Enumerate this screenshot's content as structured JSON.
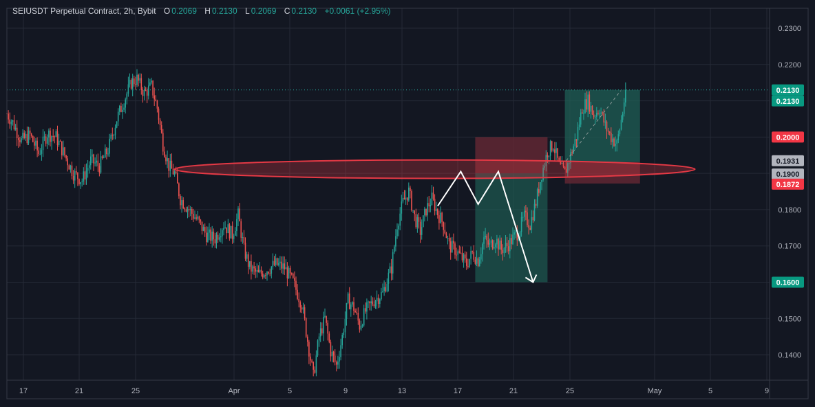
{
  "header": {
    "symbol": "SEIUSDT Perpetual Contract, 2h, Bybit",
    "o_label": "O",
    "o_value": "0.2069",
    "h_label": "H",
    "h_value": "0.2130",
    "l_label": "L",
    "l_value": "0.2069",
    "c_label": "C",
    "c_value": "0.2130",
    "change": "+0.0061 (+2.95%)"
  },
  "colors": {
    "background": "#131722",
    "grid": "#242a36",
    "up": "#26a69a",
    "down": "#ef5350",
    "ellipse": "#e53945",
    "target_zone": "#1f5f56",
    "stop_zone": "#6b2a35",
    "arrow": "#ffffff"
  },
  "chart_data": {
    "type": "candlestick",
    "title": "",
    "xlabel": "",
    "ylabel": "",
    "ylim": [
      0.133,
      0.2355
    ],
    "x_ticks": [
      "17",
      "21",
      "25",
      "Apr",
      "5",
      "9",
      "13",
      "17",
      "21",
      "25",
      "May",
      "5",
      "9"
    ],
    "y_ticks": [
      "0.2300",
      "0.2200",
      "0.2100",
      "0.2000",
      "0.1900",
      "0.1800",
      "0.1700",
      "0.1600",
      "0.1500",
      "0.1400"
    ],
    "price_path": [
      [
        0,
        0.2065
      ],
      [
        4,
        0.204
      ],
      [
        10,
        0.199
      ],
      [
        16,
        0.2005
      ],
      [
        22,
        0.1955
      ],
      [
        28,
        0.201
      ],
      [
        34,
        0.2
      ],
      [
        40,
        0.195
      ],
      [
        46,
        0.19
      ],
      [
        52,
        0.188
      ],
      [
        58,
        0.1935
      ],
      [
        64,
        0.192
      ],
      [
        70,
        0.1965
      ],
      [
        76,
        0.205
      ],
      [
        80,
        0.209
      ],
      [
        86,
        0.215
      ],
      [
        90,
        0.216
      ],
      [
        95,
        0.212
      ],
      [
        100,
        0.214
      ],
      [
        104,
        0.208
      ],
      [
        108,
        0.198
      ],
      [
        112,
        0.192
      ],
      [
        116,
        0.19
      ],
      [
        120,
        0.183
      ],
      [
        126,
        0.18
      ],
      [
        132,
        0.177
      ],
      [
        138,
        0.173
      ],
      [
        144,
        0.172
      ],
      [
        150,
        0.176
      ],
      [
        156,
        0.173
      ],
      [
        160,
        0.1785
      ],
      [
        164,
        0.169
      ],
      [
        168,
        0.164
      ],
      [
        174,
        0.162
      ],
      [
        180,
        0.1635
      ],
      [
        186,
        0.165
      ],
      [
        192,
        0.164
      ],
      [
        198,
        0.16
      ],
      [
        204,
        0.154
      ],
      [
        208,
        0.144
      ],
      [
        212,
        0.134
      ],
      [
        216,
        0.145
      ],
      [
        220,
        0.15
      ],
      [
        224,
        0.141
      ],
      [
        228,
        0.137
      ],
      [
        232,
        0.145
      ],
      [
        236,
        0.155
      ],
      [
        240,
        0.153
      ],
      [
        244,
        0.148
      ],
      [
        248,
        0.152
      ],
      [
        254,
        0.155
      ],
      [
        260,
        0.157
      ],
      [
        266,
        0.164
      ],
      [
        270,
        0.176
      ],
      [
        274,
        0.182
      ],
      [
        278,
        0.185
      ],
      [
        282,
        0.178
      ],
      [
        286,
        0.174
      ],
      [
        290,
        0.18
      ],
      [
        294,
        0.183
      ],
      [
        298,
        0.179
      ],
      [
        302,
        0.176
      ],
      [
        306,
        0.17
      ],
      [
        310,
        0.169
      ],
      [
        314,
        0.167
      ],
      [
        318,
        0.165
      ],
      [
        322,
        0.168
      ],
      [
        326,
        0.166
      ],
      [
        330,
        0.172
      ],
      [
        334,
        0.17
      ],
      [
        338,
        0.172
      ],
      [
        342,
        0.169
      ],
      [
        346,
        0.17
      ],
      [
        350,
        0.172
      ],
      [
        354,
        0.174
      ],
      [
        358,
        0.178
      ],
      [
        362,
        0.176
      ],
      [
        366,
        0.182
      ],
      [
        370,
        0.19
      ],
      [
        374,
        0.196
      ],
      [
        378,
        0.198
      ],
      [
        382,
        0.192
      ],
      [
        386,
        0.19
      ],
      [
        390,
        0.195
      ],
      [
        394,
        0.2
      ],
      [
        398,
        0.208
      ],
      [
        402,
        0.21
      ],
      [
        406,
        0.206
      ],
      [
        410,
        0.208
      ],
      [
        414,
        0.203
      ],
      [
        418,
        0.2
      ],
      [
        422,
        0.198
      ],
      [
        426,
        0.2069
      ],
      [
        428,
        0.213
      ]
    ],
    "annotations": {
      "horizontal_line": 0.213,
      "ellipse": {
        "x_from": 116,
        "x_to": 476,
        "y_top": 0.1935,
        "y_bottom": 0.1888
      },
      "target_zone_1": {
        "x_from": 324,
        "x_to": 374,
        "y_top": 0.19,
        "y_bottom": 0.16
      },
      "stop_zone_1": {
        "x_from": 324,
        "x_to": 374,
        "y_top": 0.2,
        "y_bottom": 0.19
      },
      "target_zone_2": {
        "x_from": 386,
        "x_to": 438,
        "y_top": 0.213,
        "y_bottom": 0.1931
      },
      "stop_zone_2": {
        "x_from": 386,
        "x_to": 438,
        "y_top": 0.1931,
        "y_bottom": 0.1872
      },
      "arrow_path": [
        [
          298,
          0.181
        ],
        [
          314,
          0.1905
        ],
        [
          326,
          0.1815
        ],
        [
          340,
          0.1905
        ],
        [
          364,
          0.16
        ]
      ]
    },
    "price_badges": [
      {
        "label": "0.2130",
        "value": 0.213,
        "color": "#089981"
      },
      {
        "label": "0.2130",
        "value": 0.213,
        "color": "#089981",
        "offset": 1
      },
      {
        "label": "0.2000",
        "value": 0.2,
        "color": "#f23645"
      },
      {
        "label": "0.1931",
        "value": 0.1931,
        "color": "#b2b5be"
      },
      {
        "label": "0.1900",
        "value": 0.19,
        "color": "#b2b5be"
      },
      {
        "label": "0.1872",
        "value": 0.1872,
        "color": "#f23645"
      },
      {
        "label": "0.1600",
        "value": 0.16,
        "color": "#089981"
      }
    ]
  }
}
